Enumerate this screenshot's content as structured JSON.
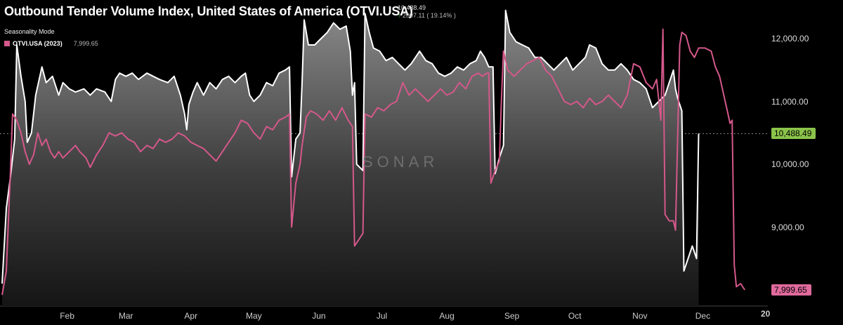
{
  "header": {
    "title": "Outbound Tender Volume Index, United States of America (OTVI.USA)",
    "last_value": "10,488.49",
    "change": "2007.11 ( 19.14% )",
    "mode": "Seasonality Mode"
  },
  "legend": {
    "name": "OTVI.USA (2023)",
    "value": "7,999.65"
  },
  "watermark": "SONAR",
  "badges": {
    "current": "10,488.49",
    "prev": "7,999.65"
  },
  "colors": {
    "current": "#ffffff",
    "prev": "#d4588a",
    "badge_current": "#8bc34a",
    "badge_prev": "#e06a9c"
  },
  "chart_data": {
    "type": "area",
    "title": "Outbound Tender Volume Index, United States of America (OTVI.USA)",
    "xlabel": "",
    "ylabel": "",
    "ylim": [
      7850,
      12550
    ],
    "xlim": [
      1,
      366
    ],
    "yticks": [
      {
        "value": 9000,
        "label": "9,000.00"
      },
      {
        "value": 10000,
        "label": "10,000.00"
      },
      {
        "value": 11000,
        "label": "11,000.00"
      },
      {
        "value": 12000,
        "label": "12,000.00"
      }
    ],
    "xticks": [
      {
        "day": 32,
        "label": "Feb"
      },
      {
        "day": 60,
        "label": "Mar"
      },
      {
        "day": 91,
        "label": "Apr"
      },
      {
        "day": 121,
        "label": "May"
      },
      {
        "day": 152,
        "label": "Jun"
      },
      {
        "day": 182,
        "label": "Jul"
      },
      {
        "day": 213,
        "label": "Aug"
      },
      {
        "day": 244,
        "label": "Sep"
      },
      {
        "day": 274,
        "label": "Oct"
      },
      {
        "day": 305,
        "label": "Nov"
      },
      {
        "day": 335,
        "label": "Dec"
      }
    ],
    "year_label": "20",
    "grid": false,
    "series": [
      {
        "name": "",
        "points": [
          [
            1,
            8100
          ],
          [
            3,
            9300
          ],
          [
            5,
            9800
          ],
          [
            7,
            10400
          ],
          [
            8,
            11900
          ],
          [
            10,
            11400
          ],
          [
            12,
            11000
          ],
          [
            13,
            10350
          ],
          [
            15,
            10500
          ],
          [
            17,
            11100
          ],
          [
            20,
            11550
          ],
          [
            22,
            11300
          ],
          [
            25,
            11400
          ],
          [
            28,
            11100
          ],
          [
            30,
            11300
          ],
          [
            33,
            11200
          ],
          [
            36,
            11150
          ],
          [
            40,
            11200
          ],
          [
            43,
            11100
          ],
          [
            46,
            11200
          ],
          [
            50,
            11150
          ],
          [
            53,
            11000
          ],
          [
            55,
            11350
          ],
          [
            57,
            11450
          ],
          [
            60,
            11400
          ],
          [
            63,
            11450
          ],
          [
            66,
            11350
          ],
          [
            70,
            11450
          ],
          [
            73,
            11400
          ],
          [
            76,
            11350
          ],
          [
            80,
            11300
          ],
          [
            83,
            11400
          ],
          [
            86,
            11100
          ],
          [
            88,
            10800
          ],
          [
            89,
            10550
          ],
          [
            90,
            10950
          ],
          [
            92,
            11150
          ],
          [
            94,
            11300
          ],
          [
            97,
            11100
          ],
          [
            100,
            11300
          ],
          [
            103,
            11200
          ],
          [
            106,
            11350
          ],
          [
            109,
            11400
          ],
          [
            112,
            11300
          ],
          [
            115,
            11400
          ],
          [
            117,
            11450
          ],
          [
            119,
            11100
          ],
          [
            121,
            11000
          ],
          [
            124,
            11100
          ],
          [
            127,
            11300
          ],
          [
            130,
            11250
          ],
          [
            133,
            11450
          ],
          [
            136,
            11500
          ],
          [
            138,
            11550
          ],
          [
            139,
            9800
          ],
          [
            141,
            10400
          ],
          [
            143,
            10500
          ],
          [
            144,
            11300
          ],
          [
            145,
            12300
          ],
          [
            147,
            11900
          ],
          [
            150,
            11900
          ],
          [
            153,
            12000
          ],
          [
            156,
            12100
          ],
          [
            159,
            12250
          ],
          [
            162,
            12150
          ],
          [
            165,
            12200
          ],
          [
            167,
            11800
          ],
          [
            168,
            11100
          ],
          [
            169,
            11300
          ],
          [
            170,
            10000
          ],
          [
            173,
            9900
          ],
          [
            174,
            12400
          ],
          [
            176,
            12100
          ],
          [
            178,
            11850
          ],
          [
            181,
            11800
          ],
          [
            184,
            11650
          ],
          [
            187,
            11700
          ],
          [
            190,
            11600
          ],
          [
            193,
            11500
          ],
          [
            196,
            11600
          ],
          [
            200,
            11800
          ],
          [
            203,
            11650
          ],
          [
            206,
            11600
          ],
          [
            209,
            11450
          ],
          [
            212,
            11400
          ],
          [
            215,
            11450
          ],
          [
            218,
            11550
          ],
          [
            221,
            11500
          ],
          [
            224,
            11600
          ],
          [
            227,
            11650
          ],
          [
            229,
            11800
          ],
          [
            231,
            11700
          ],
          [
            233,
            11550
          ],
          [
            235,
            11550
          ],
          [
            236,
            9850
          ],
          [
            238,
            10100
          ],
          [
            240,
            10300
          ],
          [
            241,
            12450
          ],
          [
            243,
            12100
          ],
          [
            246,
            11950
          ],
          [
            249,
            11900
          ],
          [
            252,
            11850
          ],
          [
            255,
            11700
          ],
          [
            258,
            11700
          ],
          [
            261,
            11600
          ],
          [
            264,
            11500
          ],
          [
            267,
            11600
          ],
          [
            270,
            11700
          ],
          [
            273,
            11500
          ],
          [
            276,
            11600
          ],
          [
            279,
            11700
          ],
          [
            281,
            11900
          ],
          [
            284,
            11850
          ],
          [
            287,
            11600
          ],
          [
            290,
            11500
          ],
          [
            293,
            11500
          ],
          [
            296,
            11600
          ],
          [
            299,
            11500
          ],
          [
            302,
            11350
          ],
          [
            305,
            11300
          ],
          [
            308,
            11200
          ],
          [
            311,
            10900
          ],
          [
            314,
            11000
          ],
          [
            317,
            11100
          ],
          [
            319,
            11300
          ],
          [
            321,
            11500
          ],
          [
            322,
            11200
          ],
          [
            323,
            11050
          ],
          [
            325,
            10850
          ],
          [
            326,
            8300
          ],
          [
            328,
            8500
          ],
          [
            330,
            8700
          ],
          [
            332,
            8500
          ],
          [
            333,
            10488
          ]
        ]
      },
      {
        "name": "OTVI.USA (2023)",
        "points": [
          [
            1,
            7920
          ],
          [
            3,
            8300
          ],
          [
            5,
            9900
          ],
          [
            6,
            10800
          ],
          [
            8,
            10700
          ],
          [
            10,
            10500
          ],
          [
            12,
            10200
          ],
          [
            14,
            10000
          ],
          [
            16,
            10150
          ],
          [
            18,
            10500
          ],
          [
            20,
            10300
          ],
          [
            22,
            10400
          ],
          [
            24,
            10200
          ],
          [
            26,
            10100
          ],
          [
            28,
            10200
          ],
          [
            30,
            10100
          ],
          [
            33,
            10200
          ],
          [
            36,
            10300
          ],
          [
            38,
            10200
          ],
          [
            41,
            10100
          ],
          [
            43,
            9950
          ],
          [
            46,
            10150
          ],
          [
            49,
            10300
          ],
          [
            52,
            10500
          ],
          [
            55,
            10450
          ],
          [
            58,
            10500
          ],
          [
            61,
            10400
          ],
          [
            64,
            10350
          ],
          [
            67,
            10200
          ],
          [
            70,
            10300
          ],
          [
            73,
            10250
          ],
          [
            76,
            10400
          ],
          [
            79,
            10350
          ],
          [
            82,
            10400
          ],
          [
            85,
            10500
          ],
          [
            88,
            10450
          ],
          [
            91,
            10350
          ],
          [
            94,
            10300
          ],
          [
            97,
            10250
          ],
          [
            100,
            10150
          ],
          [
            103,
            10050
          ],
          [
            106,
            10200
          ],
          [
            109,
            10350
          ],
          [
            112,
            10500
          ],
          [
            115,
            10700
          ],
          [
            118,
            10650
          ],
          [
            121,
            10500
          ],
          [
            124,
            10400
          ],
          [
            127,
            10600
          ],
          [
            130,
            10550
          ],
          [
            133,
            10700
          ],
          [
            136,
            10750
          ],
          [
            138,
            10800
          ],
          [
            139,
            9000
          ],
          [
            141,
            9700
          ],
          [
            143,
            10000
          ],
          [
            144,
            10300
          ],
          [
            146,
            10750
          ],
          [
            148,
            10850
          ],
          [
            151,
            10800
          ],
          [
            154,
            10700
          ],
          [
            157,
            10850
          ],
          [
            160,
            10700
          ],
          [
            163,
            10900
          ],
          [
            166,
            10700
          ],
          [
            168,
            10600
          ],
          [
            169,
            8700
          ],
          [
            171,
            8800
          ],
          [
            173,
            8900
          ],
          [
            174,
            10800
          ],
          [
            177,
            10750
          ],
          [
            180,
            10900
          ],
          [
            183,
            10850
          ],
          [
            186,
            10950
          ],
          [
            189,
            11000
          ],
          [
            192,
            11300
          ],
          [
            195,
            11100
          ],
          [
            198,
            11200
          ],
          [
            201,
            11100
          ],
          [
            204,
            11000
          ],
          [
            207,
            11100
          ],
          [
            210,
            11200
          ],
          [
            213,
            11100
          ],
          [
            216,
            11150
          ],
          [
            219,
            11300
          ],
          [
            222,
            11200
          ],
          [
            225,
            11400
          ],
          [
            228,
            11450
          ],
          [
            230,
            11400
          ],
          [
            232,
            11450
          ],
          [
            233,
            11450
          ],
          [
            234,
            9700
          ],
          [
            236,
            9900
          ],
          [
            238,
            10050
          ],
          [
            239,
            11000
          ],
          [
            240,
            11800
          ],
          [
            242,
            11500
          ],
          [
            245,
            11400
          ],
          [
            248,
            11500
          ],
          [
            251,
            11600
          ],
          [
            254,
            11650
          ],
          [
            257,
            11700
          ],
          [
            260,
            11500
          ],
          [
            263,
            11400
          ],
          [
            266,
            11200
          ],
          [
            269,
            11000
          ],
          [
            272,
            10950
          ],
          [
            275,
            11000
          ],
          [
            278,
            10900
          ],
          [
            281,
            11050
          ],
          [
            284,
            10950
          ],
          [
            287,
            11000
          ],
          [
            290,
            11100
          ],
          [
            293,
            11000
          ],
          [
            296,
            10900
          ],
          [
            299,
            11100
          ],
          [
            302,
            11600
          ],
          [
            305,
            11550
          ],
          [
            308,
            11300
          ],
          [
            311,
            11200
          ],
          [
            313,
            11350
          ],
          [
            315,
            10700
          ],
          [
            316,
            12150
          ],
          [
            317,
            9200
          ],
          [
            319,
            9100
          ],
          [
            321,
            9100
          ],
          [
            322,
            8950
          ],
          [
            324,
            11900
          ],
          [
            325,
            12100
          ],
          [
            327,
            12050
          ],
          [
            329,
            11800
          ],
          [
            331,
            11700
          ],
          [
            333,
            11850
          ],
          [
            336,
            11850
          ],
          [
            339,
            11800
          ],
          [
            341,
            11550
          ],
          [
            343,
            11400
          ],
          [
            345,
            11100
          ],
          [
            347,
            10800
          ],
          [
            348,
            10650
          ],
          [
            349,
            10700
          ],
          [
            350,
            8400
          ],
          [
            351,
            8050
          ],
          [
            353,
            8100
          ],
          [
            355,
            8000
          ]
        ]
      }
    ]
  }
}
